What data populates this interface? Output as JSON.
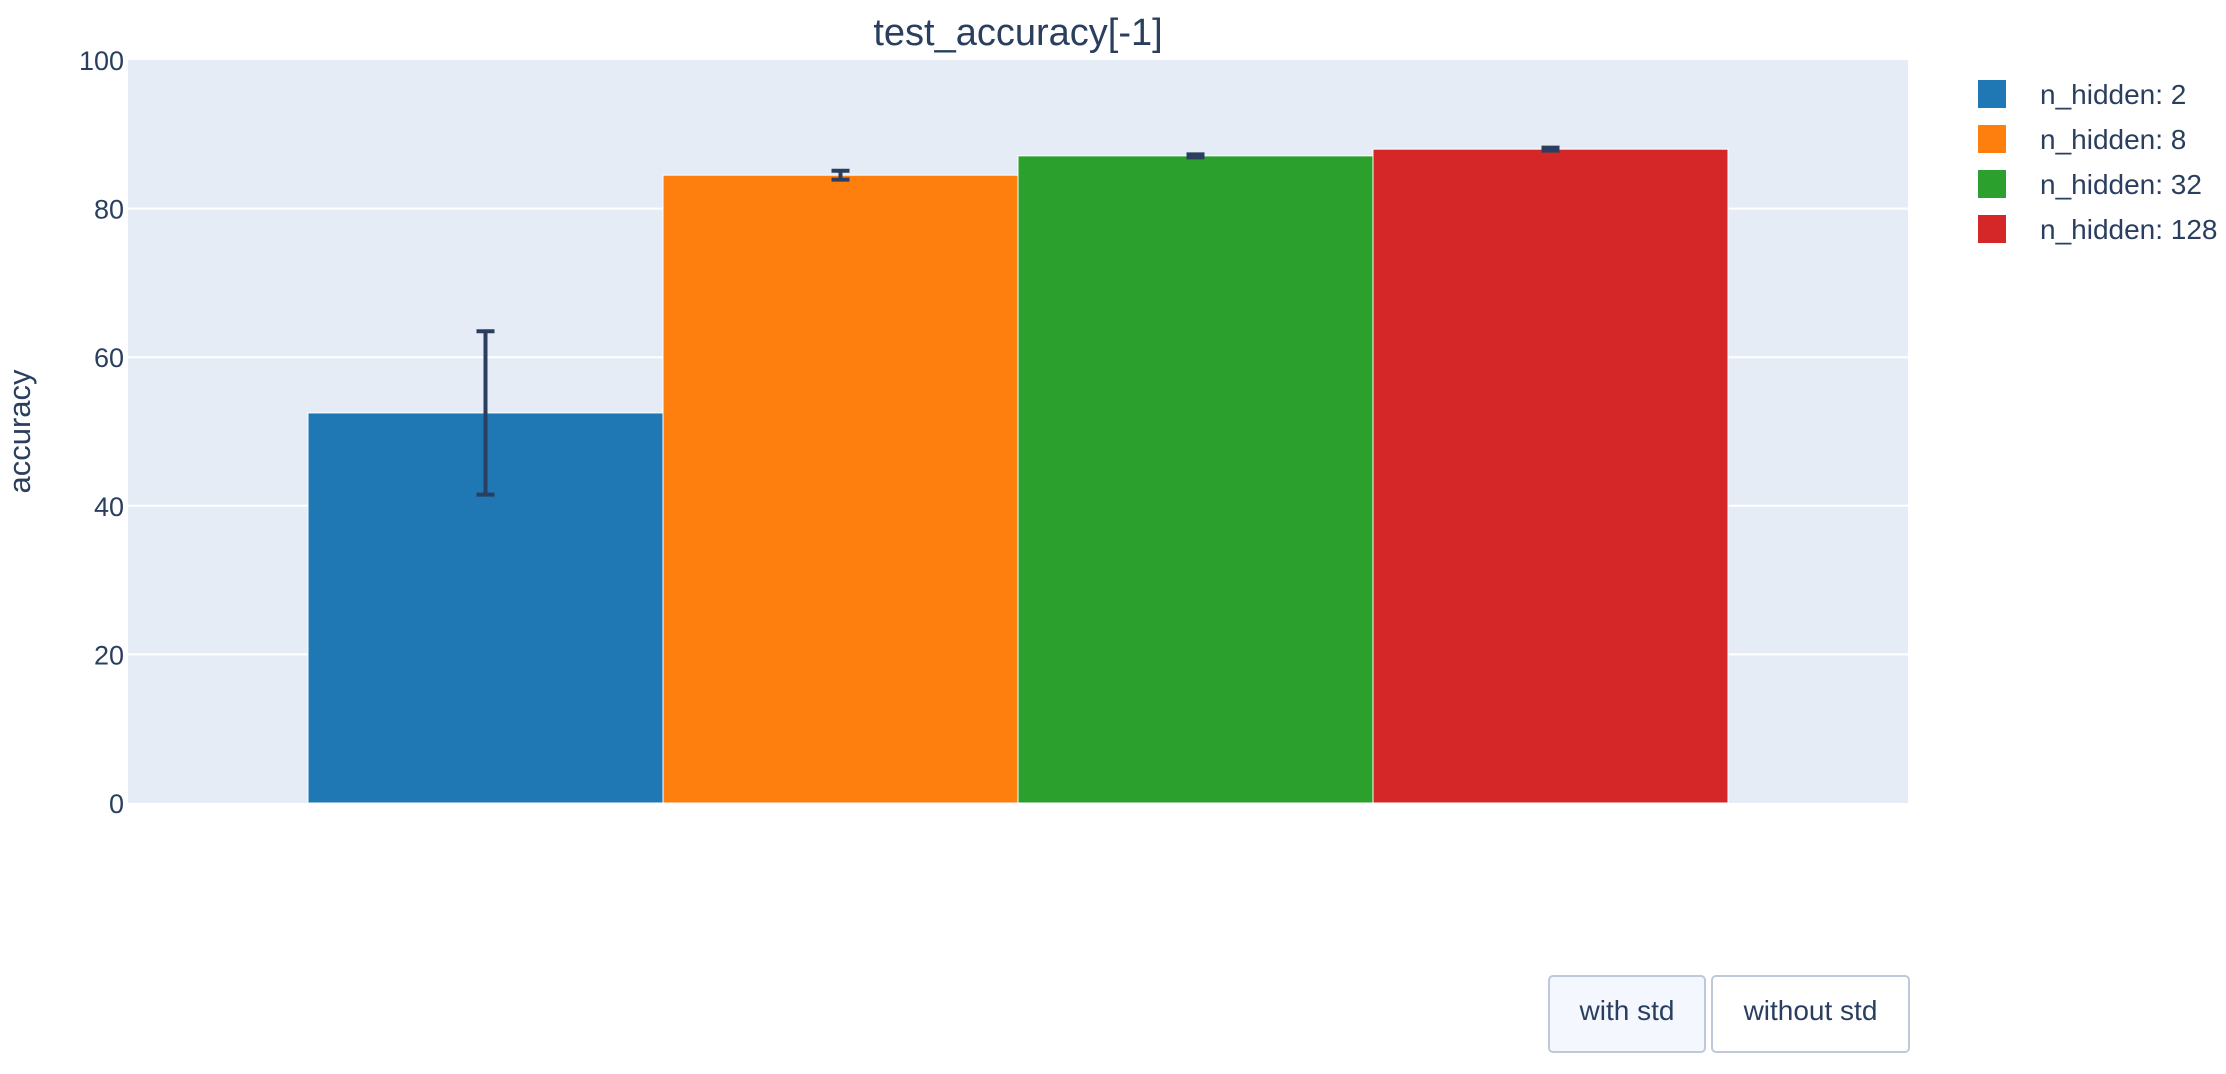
{
  "chart_data": {
    "type": "bar",
    "title": "test_accuracy[-1]",
    "xlabel": "",
    "ylabel": "accuracy",
    "ylim": [
      0,
      100
    ],
    "yticks": [
      0,
      20,
      40,
      60,
      80,
      100
    ],
    "grid": true,
    "legend_position": "top-right, outside plot",
    "series": [
      {
        "name": "n_hidden: 2",
        "value": 52.5,
        "error": 11.0,
        "color": "#1f77b4"
      },
      {
        "name": "n_hidden: 8",
        "value": 84.5,
        "error": 0.6,
        "color": "#ff7f0e"
      },
      {
        "name": "n_hidden: 32",
        "value": 87.1,
        "error": 0.2,
        "color": "#2ca02c"
      },
      {
        "name": "n_hidden: 128",
        "value": 88.0,
        "error": 0.2,
        "color": "#d62728"
      }
    ],
    "error_bar_color": "#2a3f5f",
    "plot_background": "#e5ecf6"
  },
  "buttons": {
    "with_std": "with std",
    "without_std": "without std"
  }
}
